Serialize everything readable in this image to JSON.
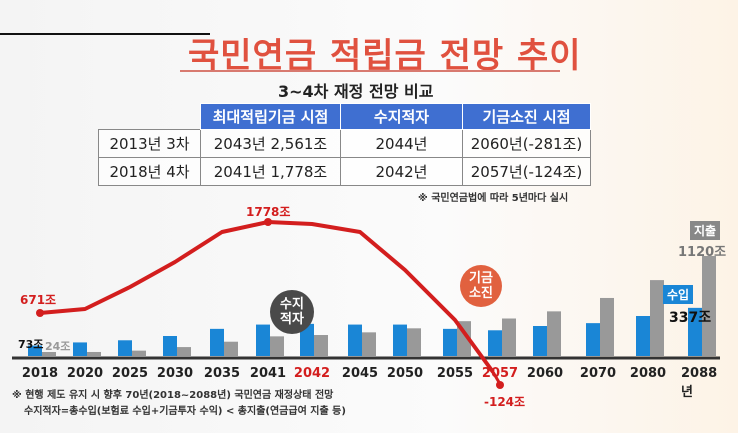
{
  "header": {
    "title": "국민연금 적립금 전망 추이",
    "subtitle": "3~4차 재정 전망 비교"
  },
  "table": {
    "columns": [
      "최대적립기금 시점",
      "수지적자",
      "기금소진 시점"
    ],
    "rows": [
      {
        "label": "2013년 3차",
        "cells": [
          "2043년 2,561조",
          "2044년",
          "2060년(-281조)"
        ]
      },
      {
        "label": "2018년 4차",
        "cells": [
          "2041년 1,778조",
          "2042년",
          "2057년(-124조)"
        ]
      }
    ],
    "note": "※ 국민연금법에 따라 5년마다 실시"
  },
  "chart_labels": {
    "start_fund": "671조",
    "peak_fund": "1778조",
    "end_fund": "-124조",
    "income_2018": "73조",
    "expense_2018": "24조",
    "income_2088": "337조",
    "expense_2088": "1120조",
    "deficit_bubble_1": "수지",
    "deficit_bubble_2": "적자",
    "depletion_bubble_1": "기금",
    "depletion_bubble_2": "소진",
    "income_tag": "수입",
    "expense_tag": "지출"
  },
  "footer": {
    "line1": "※ 현행 제도 유지 시 향후 70년(2018~2088년) 국민연금 재정상태 전망",
    "line2": "수지적자=총수입(보험료 수입+기금투자 수익) < 총지출(연금급여 지출 등)"
  },
  "colors": {
    "income": "#1a86d6",
    "expense": "#999999",
    "fund": "#d31e1e",
    "title": "#e0513f",
    "table_header": "#3f6fd1"
  },
  "chart_data": {
    "type": "bar",
    "title": "국민연금 적립금 전망 추이",
    "categories": [
      "2018",
      "2020",
      "2025",
      "2030",
      "2035",
      "2041",
      "2042",
      "2045",
      "2050",
      "2055",
      "2057",
      "2060",
      "2070",
      "2080",
      "2088년"
    ],
    "highlighted_categories": [
      "2042",
      "2057"
    ],
    "series": [
      {
        "name": "수입",
        "type": "bar",
        "values": [
          73,
          95,
          110,
          140,
          190,
          220,
          225,
          220,
          220,
          190,
          180,
          210,
          230,
          280,
          337
        ]
      },
      {
        "name": "지출",
        "type": "bar",
        "values": [
          24,
          45,
          60,
          100,
          160,
          220,
          235,
          265,
          310,
          390,
          420,
          500,
          650,
          850,
          1120
        ]
      },
      {
        "name": "적립금",
        "type": "line",
        "values": [
          671,
          700,
          1150,
          1550,
          1720,
          1778,
          1770,
          1720,
          1350,
          700,
          -124,
          null,
          null,
          null,
          null
        ]
      }
    ],
    "annotations": [
      "671조",
      "1778조",
      "-124조",
      "73조",
      "24조",
      "337조",
      "1120조",
      "수지적자 (2042)",
      "기금소진 (2057)"
    ],
    "xlabel": "",
    "ylabel": "조 원"
  }
}
